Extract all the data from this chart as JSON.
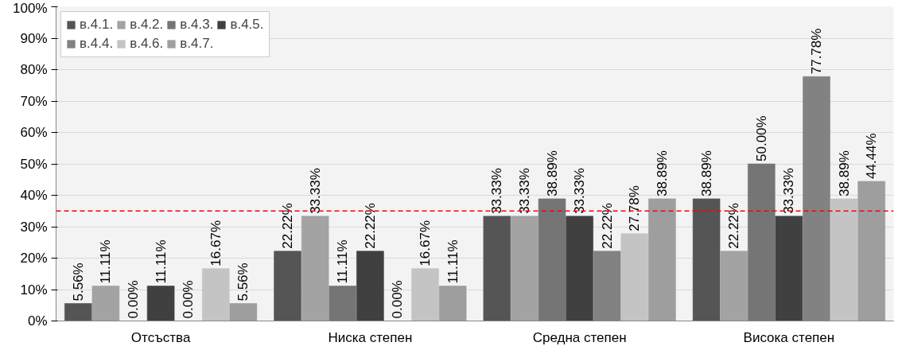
{
  "chart_data": {
    "type": "bar",
    "categories": [
      "Отсъства",
      "Ниска степен",
      "Средна степен",
      "Висока степен"
    ],
    "series": [
      {
        "name": "в.4.1.",
        "color": "#555555",
        "values": [
          5.56,
          22.22,
          33.33,
          38.89
        ],
        "value_labels": [
          "5.56%",
          "22.22%",
          "33.33%",
          "38.89%"
        ]
      },
      {
        "name": "в.4.2.",
        "color": "#a3a3a3",
        "values": [
          11.11,
          33.33,
          33.33,
          22.22
        ],
        "value_labels": [
          "11.11%",
          "33.33%",
          "33.33%",
          "22.22%"
        ]
      },
      {
        "name": "в.4.3.",
        "color": "#757575",
        "values": [
          0.0,
          11.11,
          38.89,
          50.0
        ],
        "value_labels": [
          "0.00%",
          "11.11%",
          "38.89%",
          "50.00%"
        ]
      },
      {
        "name": "в.4.5.",
        "color": "#404040",
        "values": [
          11.11,
          22.22,
          33.33,
          33.33
        ],
        "value_labels": [
          "11.11%",
          "22.22%",
          "33.33%",
          "33.33%"
        ]
      },
      {
        "name": "в.4.4.",
        "color": "#828282",
        "values": [
          0.0,
          0.0,
          22.22,
          77.78
        ],
        "value_labels": [
          "0.00%",
          "0.00%",
          "22.22%",
          "77.78%"
        ]
      },
      {
        "name": "в.4.6.",
        "color": "#c4c4c4",
        "values": [
          16.67,
          16.67,
          27.78,
          38.89
        ],
        "value_labels": [
          "16.67%",
          "16.67%",
          "27.78%",
          "38.89%"
        ]
      },
      {
        "name": "в.4.7.",
        "color": "#9e9e9e",
        "values": [
          5.56,
          11.11,
          38.89,
          44.44
        ],
        "value_labels": [
          "5.56%",
          "11.11%",
          "38.89%",
          "44.44%"
        ]
      }
    ],
    "ylim": [
      0,
      100
    ],
    "yticks": [
      {
        "value": 0,
        "label": "0%"
      },
      {
        "value": 10,
        "label": "10%"
      },
      {
        "value": 20,
        "label": "20%"
      },
      {
        "value": 30,
        "label": "30%"
      },
      {
        "value": 40,
        "label": "40%"
      },
      {
        "value": 50,
        "label": "50%"
      },
      {
        "value": 60,
        "label": "60%"
      },
      {
        "value": 70,
        "label": "70%"
      },
      {
        "value": 80,
        "label": "80%"
      },
      {
        "value": 90,
        "label": "90%"
      },
      {
        "value": 100,
        "label": "100%"
      }
    ],
    "ref_lines": [
      {
        "axis": "y",
        "value": 35,
        "color": "#ff0000",
        "line_style": "dashed"
      }
    ],
    "grid": "y",
    "legend": "top left"
  }
}
